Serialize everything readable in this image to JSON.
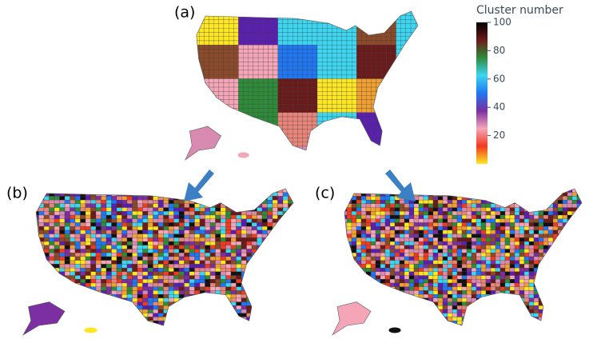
{
  "panels": [
    {
      "label": "(a)"
    },
    {
      "label": "(b)"
    },
    {
      "label": "(c)"
    }
  ],
  "colorbar": {
    "title": "Cluster number",
    "lim": [
      0,
      100
    ],
    "ticks": [
      20,
      40,
      60,
      80,
      100
    ],
    "colors": [
      "#fde725",
      "#f03b20",
      "#f4a6b8",
      "#7b2fa0",
      "#1f77f4",
      "#3dd6f0",
      "#2e8b3a",
      "#6b1a1a",
      "#000000"
    ]
  }
}
